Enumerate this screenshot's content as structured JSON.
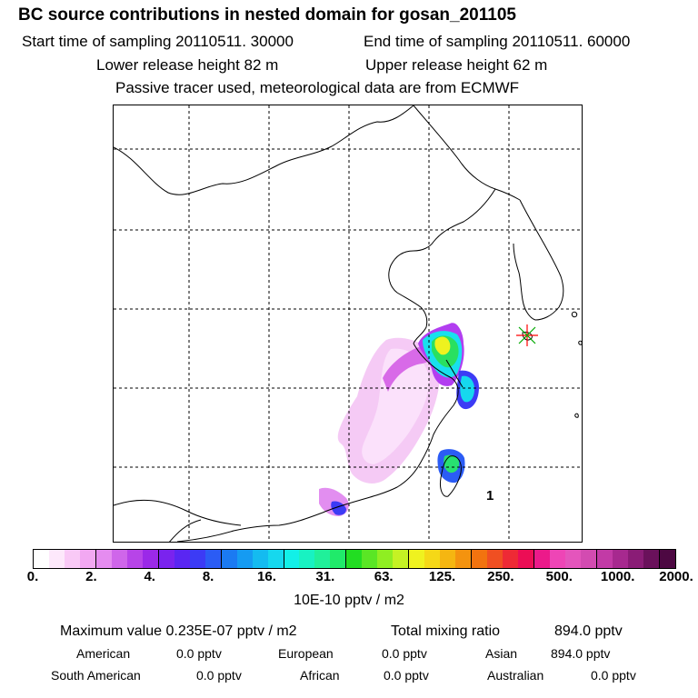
{
  "header": {
    "title": "BC  source contributions in nested domain for gosan_201105",
    "start_label": "Start time of sampling 20110511. 30000",
    "end_label": "End time of sampling 20110511. 60000",
    "lower_label": "Lower release height   82 m",
    "upper_label": "Upper release height   62 m",
    "info_line": "Passive tracer used, meteorological data are from ECMWF"
  },
  "map": {
    "release_marker_label": "1",
    "release_marker_color": "#ff0000"
  },
  "chart_data": {
    "type": "heatmap",
    "title": "BC  source contributions in nested domain for gosan_201105",
    "colorbar_ticks": [
      "0.",
      "2.",
      "4.",
      "8.",
      "16.",
      "31.",
      "63.",
      "125.",
      "250.",
      "500.",
      "1000.",
      "2000."
    ],
    "colorbar_colors": [
      "#ffffff",
      "#fde8fb",
      "#f9c9f6",
      "#f2a8f2",
      "#e58cf0",
      "#cf66ea",
      "#b744e8",
      "#9b29e8",
      "#7a23ee",
      "#5a26f2",
      "#3c3bf5",
      "#2b5cf5",
      "#1b7af2",
      "#159bf2",
      "#14bbf0",
      "#16d8ee",
      "#12f0e8",
      "#18f2c2",
      "#20f09a",
      "#20ea6a",
      "#22dd22",
      "#5ae625",
      "#8fee22",
      "#c5f224",
      "#eff21f",
      "#f5d817",
      "#f5b611",
      "#f4930f",
      "#f2730f",
      "#f04f22",
      "#ee2a35",
      "#ec0d55",
      "#ec1a8a",
      "#ee45b6",
      "#e455bc",
      "#d34bb1",
      "#c23aa6",
      "#a7298f",
      "#8a1c76",
      "#6a115b",
      "#4d0842"
    ],
    "units": "10E-10 pptv / m2",
    "field_max": "0.235E-07 pptv / m2",
    "total_mixing_ratio": "894.0 pptv"
  },
  "stats": {
    "maximum_label": "Maximum value  0.235E-07 pptv / m2",
    "total_label": "Total mixing ratio",
    "total_value": "894.0 pptv",
    "american_label": "American",
    "american_value": "0.0 pptv",
    "european_label": "European",
    "european_value": "0.0 pptv",
    "asian_label": "Asian",
    "asian_value": "894.0 pptv",
    "south_american_label": "South American",
    "south_american_value": "0.0 pptv",
    "african_label": "African",
    "african_value": "0.0 pptv",
    "australian_label": "Australian",
    "australian_value": "0.0 pptv"
  }
}
